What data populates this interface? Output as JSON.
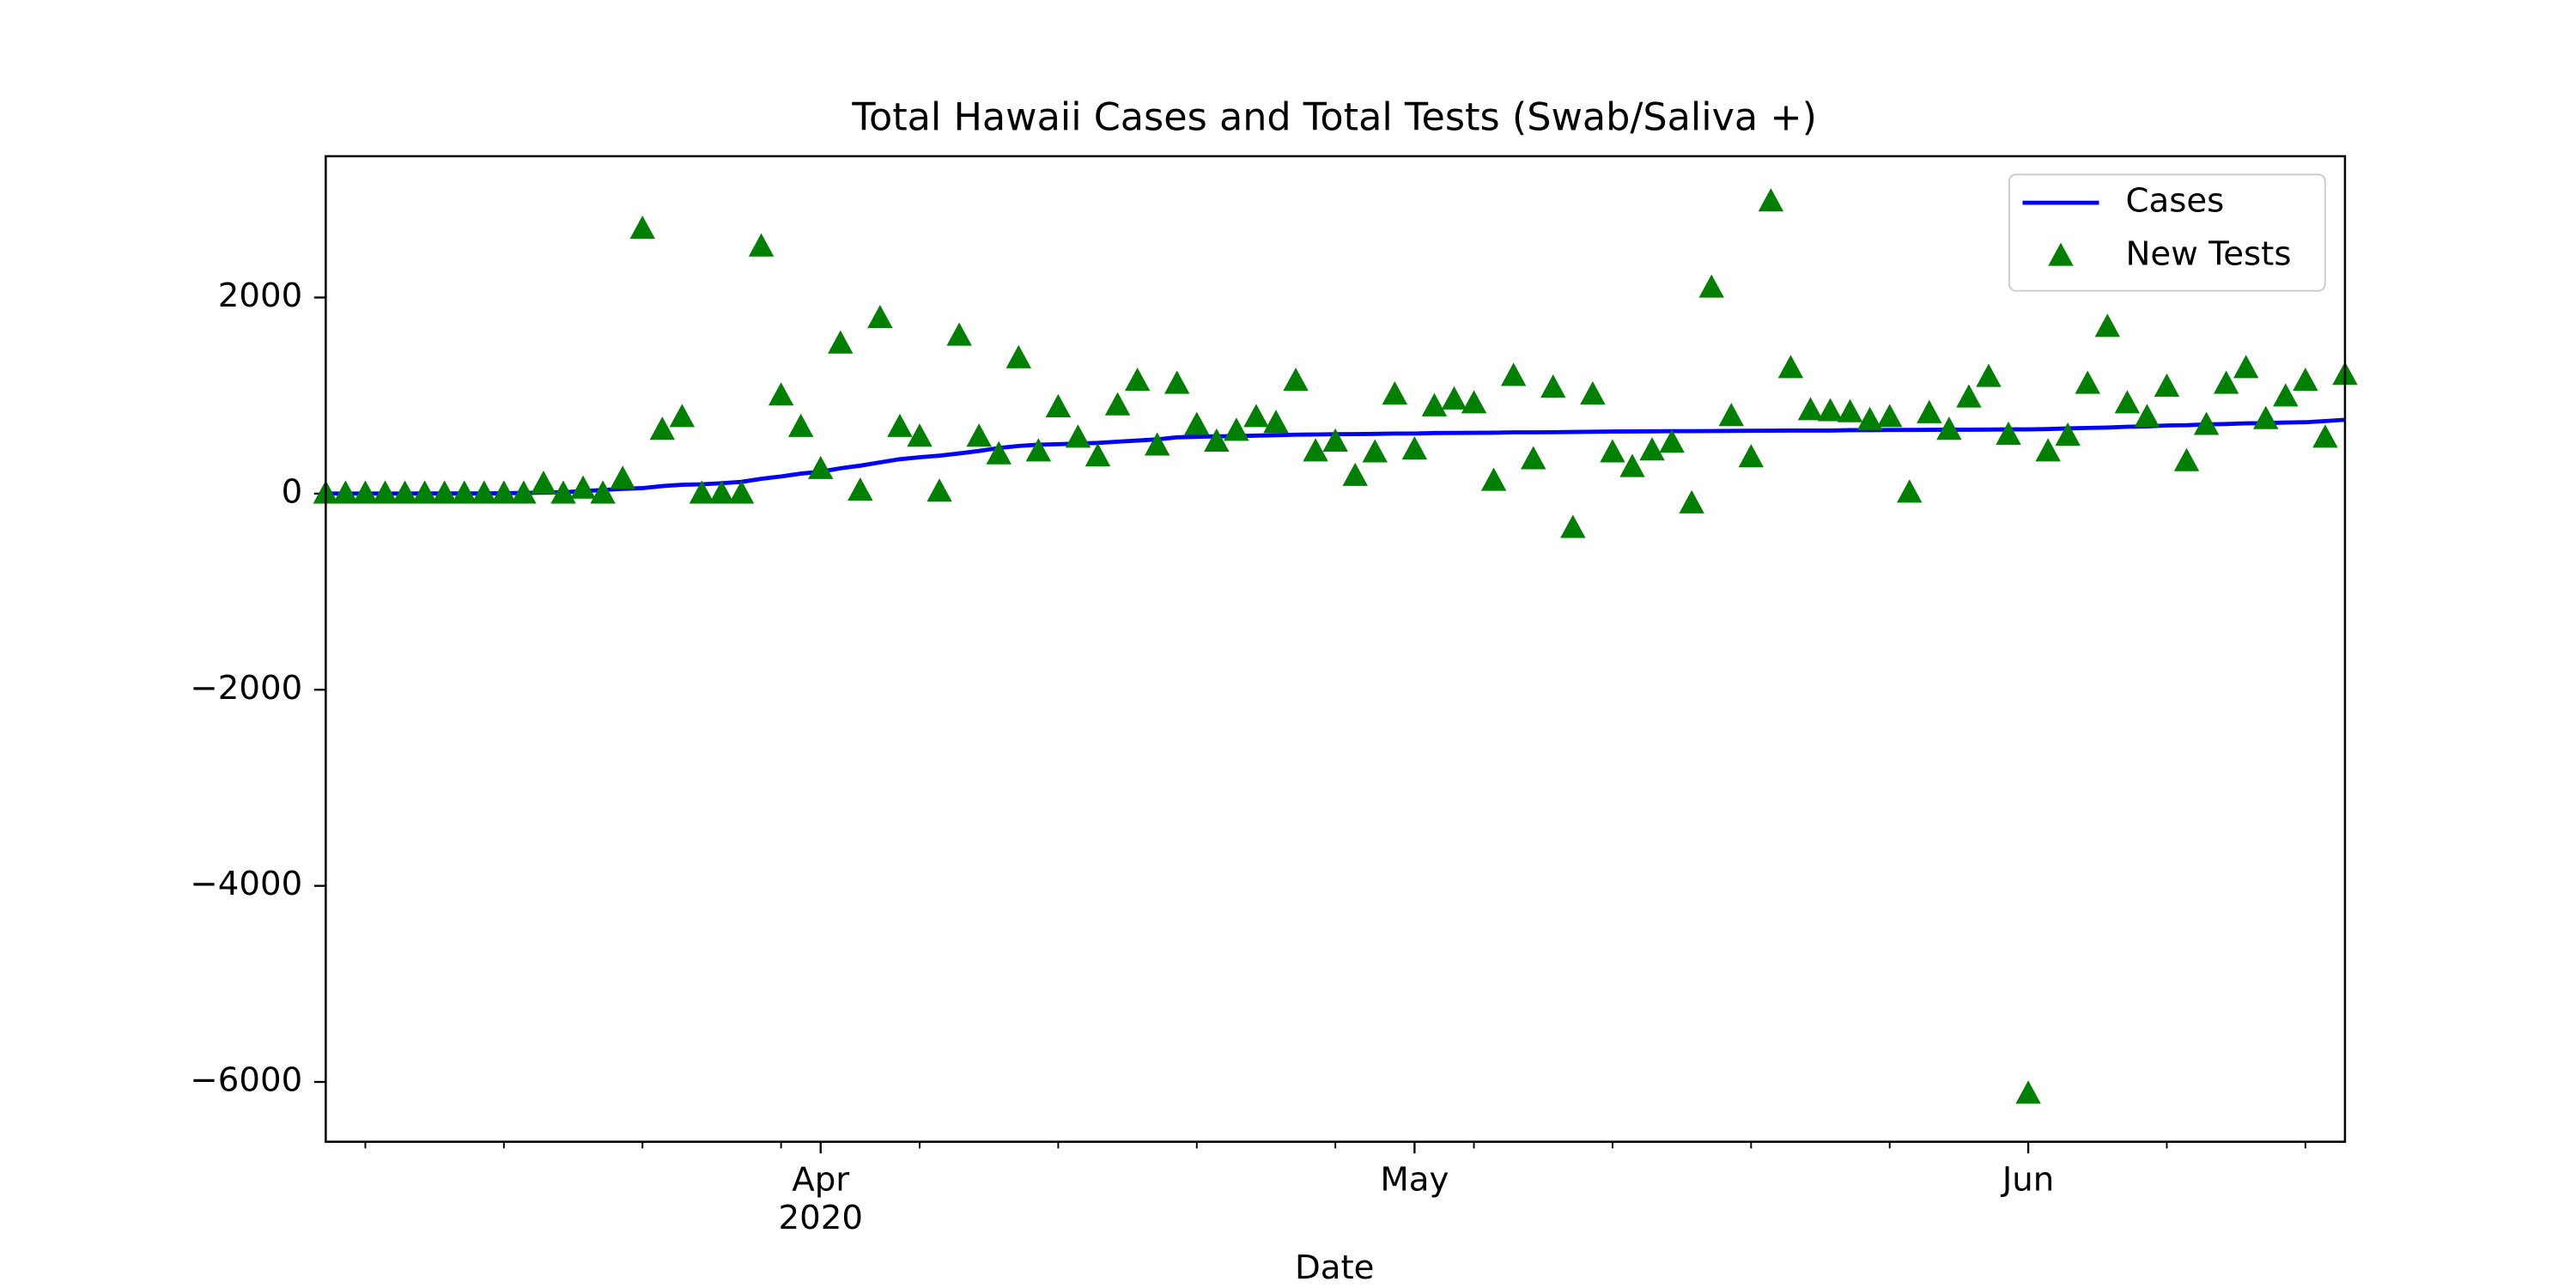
{
  "chart_data": {
    "type": "line",
    "title": "Total Hawaii Cases and Total Tests (Swab/Saliva +)",
    "xlabel": "Date",
    "x": [
      "2020-03-07",
      "2020-03-08",
      "2020-03-09",
      "2020-03-10",
      "2020-03-11",
      "2020-03-12",
      "2020-03-13",
      "2020-03-14",
      "2020-03-15",
      "2020-03-16",
      "2020-03-17",
      "2020-03-18",
      "2020-03-19",
      "2020-03-20",
      "2020-03-21",
      "2020-03-22",
      "2020-03-23",
      "2020-03-24",
      "2020-03-25",
      "2020-03-26",
      "2020-03-27",
      "2020-03-28",
      "2020-03-29",
      "2020-03-30",
      "2020-03-31",
      "2020-04-01",
      "2020-04-02",
      "2020-04-03",
      "2020-04-04",
      "2020-04-05",
      "2020-04-06",
      "2020-04-07",
      "2020-04-08",
      "2020-04-09",
      "2020-04-10",
      "2020-04-11",
      "2020-04-12",
      "2020-04-13",
      "2020-04-14",
      "2020-04-15",
      "2020-04-16",
      "2020-04-17",
      "2020-04-18",
      "2020-04-19",
      "2020-04-20",
      "2020-04-21",
      "2020-04-22",
      "2020-04-23",
      "2020-04-24",
      "2020-04-25",
      "2020-04-26",
      "2020-04-27",
      "2020-04-28",
      "2020-04-29",
      "2020-04-30",
      "2020-05-01",
      "2020-05-02",
      "2020-05-03",
      "2020-05-04",
      "2020-05-05",
      "2020-05-06",
      "2020-05-07",
      "2020-05-08",
      "2020-05-09",
      "2020-05-10",
      "2020-05-11",
      "2020-05-12",
      "2020-05-13",
      "2020-05-14",
      "2020-05-15",
      "2020-05-16",
      "2020-05-17",
      "2020-05-18",
      "2020-05-19",
      "2020-05-20",
      "2020-05-21",
      "2020-05-22",
      "2020-05-23",
      "2020-05-24",
      "2020-05-25",
      "2020-05-26",
      "2020-05-27",
      "2020-05-28",
      "2020-05-29",
      "2020-05-30",
      "2020-05-31",
      "2020-06-01",
      "2020-06-02",
      "2020-06-03",
      "2020-06-04",
      "2020-06-05",
      "2020-06-06",
      "2020-06-07",
      "2020-06-08",
      "2020-06-09",
      "2020-06-10",
      "2020-06-11",
      "2020-06-12",
      "2020-06-13",
      "2020-06-14",
      "2020-06-15",
      "2020-06-16",
      "2020-06-17"
    ],
    "series": [
      {
        "name": "Cases",
        "color": "#0000ff",
        "style": "line",
        "values": [
          1,
          1,
          1,
          1,
          1,
          2,
          2,
          2,
          2,
          4,
          7,
          10,
          14,
          26,
          37,
          48,
          56,
          77,
          90,
          95,
          106,
          120,
          151,
          175,
          204,
          224,
          258,
          285,
          319,
          351,
          371,
          387,
          410,
          435,
          465,
          486,
          499,
          504,
          511,
          517,
          530,
          541,
          553,
          574,
          580,
          584,
          586,
          592,
          596,
          601,
          603,
          606,
          607,
          609,
          613,
          613,
          618,
          619,
          620,
          621,
          625,
          625,
          626,
          629,
          631,
          633,
          634,
          635,
          637,
          637,
          638,
          640,
          641,
          642,
          643,
          643,
          643,
          647,
          647,
          649,
          650,
          651,
          652,
          652,
          653,
          655,
          655,
          658,
          665,
          670,
          674,
          682,
          686,
          695,
          698,
          706,
          710,
          717,
          719,
          725,
          728,
          740,
          753
        ]
      },
      {
        "name": "New Tests",
        "color": "#008000",
        "style": "triangle",
        "values": [
          0,
          0,
          0,
          0,
          0,
          0,
          0,
          0,
          0,
          0,
          0,
          100,
          0,
          50,
          0,
          150,
          2700,
          650,
          780,
          0,
          0,
          0,
          2520,
          1000,
          680,
          250,
          1530,
          30,
          1790,
          680,
          580,
          20,
          1610,
          580,
          400,
          1380,
          430,
          880,
          570,
          380,
          900,
          1150,
          490,
          1120,
          700,
          530,
          640,
          780,
          720,
          1150,
          430,
          530,
          180,
          420,
          1010,
          450,
          890,
          960,
          920,
          130,
          1200,
          350,
          1080,
          -350,
          1010,
          420,
          270,
          440,
          520,
          -100,
          2100,
          790,
          370,
          2980,
          1280,
          850,
          840,
          830,
          750,
          780,
          10,
          820,
          650,
          980,
          1190,
          600,
          -6120,
          430,
          590,
          1120,
          1700,
          920,
          780,
          1090,
          330,
          700,
          1120,
          1280,
          760,
          990,
          1150,
          570,
          1210
        ]
      }
    ],
    "xlim": [
      "2020-03-07",
      "2020-06-17"
    ],
    "xticks": [
      {
        "value": "2020-04-01",
        "label": "Apr"
      },
      {
        "value": "2020-05-01",
        "label": "May"
      },
      {
        "value": "2020-06-01",
        "label": "Jun"
      }
    ],
    "x_offset_label": "2020",
    "xminorticks": [
      "2020-03-09",
      "2020-03-16",
      "2020-03-23",
      "2020-03-30",
      "2020-04-06",
      "2020-04-13",
      "2020-04-20",
      "2020-04-27",
      "2020-05-04",
      "2020-05-11",
      "2020-05-18",
      "2020-05-25",
      "2020-06-08",
      "2020-06-15"
    ],
    "ylim": [
      -6610,
      3441
    ],
    "yticks": [
      {
        "value": -6000,
        "label": "−6000"
      },
      {
        "value": -4000,
        "label": "−4000"
      },
      {
        "value": -2000,
        "label": "−2000"
      },
      0,
      2000
    ],
    "grid": false,
    "legend": "upper right"
  }
}
